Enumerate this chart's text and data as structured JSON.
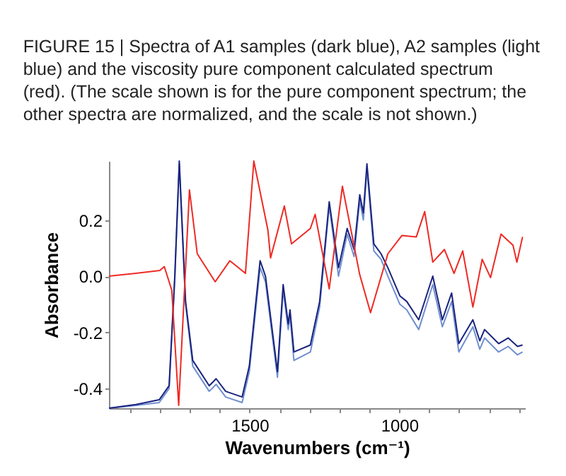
{
  "chart_data": {
    "type": "line",
    "title": "FIGURE 15 | Spectra of A1 samples (dark blue), A2 samples (light blue) and the viscosity pure component calculated spectrum (red). (The scale shown is for the pure component spectrum; the other spectra are normalized, and the scale is not shown.)",
    "xlabel": "Wavenumbers (cm⁻¹)",
    "ylabel": "Absorbance",
    "xlim": [
      1970,
      580
    ],
    "ylim": [
      -0.47,
      0.41
    ],
    "xticks": [
      {
        "value": 1900,
        "label": null
      },
      {
        "value": 1800,
        "label": null
      },
      {
        "value": 1700,
        "label": null
      },
      {
        "value": 1600,
        "label": null
      },
      1500,
      {
        "value": 1400,
        "label": null
      },
      {
        "value": 1300,
        "label": null
      },
      {
        "value": 1200,
        "label": null
      },
      {
        "value": 1100,
        "label": null
      },
      1000,
      {
        "value": 900,
        "label": null
      },
      {
        "value": 800,
        "label": null
      },
      {
        "value": 700,
        "label": null
      },
      {
        "value": 600,
        "label": null
      }
    ],
    "yticks": [
      -0.4,
      -0.2,
      {
        "value": 0,
        "label": "0.0"
      },
      0.2
    ],
    "grid": false,
    "legend": false,
    "line_style": "solid",
    "marker": "none",
    "series": [
      {
        "color": "#6f8fd0",
        "x": [
          1970,
          1879,
          1802,
          1769,
          1750,
          1735,
          1714,
          1690,
          1635,
          1612,
          1580,
          1525,
          1501,
          1465,
          1447,
          1407,
          1388,
          1371,
          1365,
          1352,
          1297,
          1266,
          1234,
          1203,
          1174,
          1151,
          1132,
          1120,
          1108,
          1085,
          1061,
          1038,
          998,
          975,
          935,
          888,
          856,
          825,
          801,
          754,
          731,
          715,
          668,
          636,
          605,
          588
        ],
        "values": [
          -0.47,
          -0.46,
          -0.45,
          -0.4,
          -0.01,
          0.4,
          -0.1,
          -0.32,
          -0.41,
          -0.385,
          -0.43,
          -0.45,
          -0.34,
          0.03,
          -0.02,
          -0.36,
          -0.05,
          -0.19,
          -0.14,
          -0.3,
          -0.27,
          -0.11,
          0.25,
          0.0,
          0.15,
          0.07,
          0.27,
          0.2,
          0.38,
          0.09,
          0.06,
          0.0,
          -0.1,
          -0.12,
          -0.19,
          -0.03,
          -0.18,
          -0.09,
          -0.27,
          -0.18,
          -0.26,
          -0.22,
          -0.27,
          -0.25,
          -0.28,
          -0.27
        ]
      },
      {
        "color": "#1a237e",
        "x": [
          1970,
          1879,
          1802,
          1769,
          1750,
          1735,
          1714,
          1690,
          1635,
          1612,
          1580,
          1525,
          1501,
          1465,
          1447,
          1407,
          1388,
          1371,
          1365,
          1352,
          1297,
          1266,
          1234,
          1203,
          1174,
          1151,
          1132,
          1120,
          1108,
          1085,
          1061,
          1038,
          998,
          975,
          935,
          888,
          856,
          825,
          801,
          754,
          731,
          715,
          668,
          636,
          605,
          588
        ],
        "values": [
          -0.47,
          -0.457,
          -0.44,
          -0.39,
          0.0,
          0.41,
          -0.09,
          -0.3,
          -0.39,
          -0.365,
          -0.41,
          -0.43,
          -0.32,
          0.055,
          0.0,
          -0.34,
          -0.03,
          -0.17,
          -0.12,
          -0.27,
          -0.245,
          -0.09,
          0.265,
          0.03,
          0.17,
          0.095,
          0.29,
          0.225,
          0.4,
          0.115,
          0.08,
          0.03,
          -0.07,
          -0.09,
          -0.155,
          0.0,
          -0.155,
          -0.06,
          -0.24,
          -0.155,
          -0.23,
          -0.19,
          -0.24,
          -0.22,
          -0.25,
          -0.245
        ]
      },
      {
        "color": "#ee2a24",
        "x": [
          1970,
          1880,
          1800,
          1785,
          1760,
          1737,
          1701,
          1675,
          1615,
          1566,
          1514,
          1486,
          1439,
          1430,
          1384,
          1360,
          1297,
          1281,
          1234,
          1190,
          1132,
          1096,
          1061,
          1038,
          991,
          943,
          915,
          888,
          849,
          817,
          788,
          754,
          723,
          695,
          660,
          620,
          607,
          588
        ],
        "values": [
          0.0,
          0.01,
          0.02,
          0.034,
          -0.05,
          -0.46,
          0.307,
          0.08,
          -0.02,
          0.055,
          0.01,
          0.41,
          0.165,
          0.065,
          0.25,
          0.115,
          0.17,
          0.22,
          -0.045,
          0.32,
          0.005,
          -0.13,
          -0.003,
          0.08,
          0.145,
          0.14,
          0.23,
          0.05,
          0.095,
          0.01,
          0.09,
          -0.11,
          0.06,
          -0.005,
          0.15,
          0.11,
          0.05,
          0.14
        ]
      }
    ]
  }
}
